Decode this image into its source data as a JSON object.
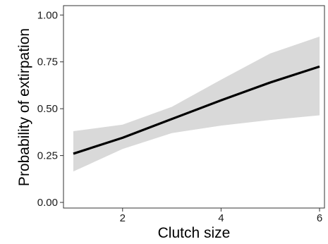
{
  "chart_data": {
    "type": "line",
    "title": "",
    "xlabel": "Clutch size",
    "ylabel": "Probability of extirpation",
    "xlim": [
      0.8,
      6.1
    ],
    "ylim": [
      -0.03,
      1.05
    ],
    "x_ticks": [
      2,
      4,
      6
    ],
    "y_ticks": [
      0.0,
      0.25,
      0.5,
      0.75,
      1.0
    ],
    "x_tick_labels": [
      "2",
      "4",
      "6"
    ],
    "y_tick_labels": [
      "0.00",
      "0.25",
      "0.50",
      "0.75",
      "1.00"
    ],
    "grid": false,
    "legend": "none",
    "series": [
      {
        "x": [
          1,
          2,
          3,
          4,
          5,
          6
        ],
        "y": [
          0.26,
          0.345,
          0.445,
          0.545,
          0.64,
          0.725
        ],
        "lower": [
          0.165,
          0.285,
          0.37,
          0.41,
          0.44,
          0.465
        ],
        "upper": [
          0.38,
          0.415,
          0.51,
          0.655,
          0.795,
          0.885
        ],
        "color": "#000000",
        "band_color": "#d9d9d9"
      }
    ]
  }
}
